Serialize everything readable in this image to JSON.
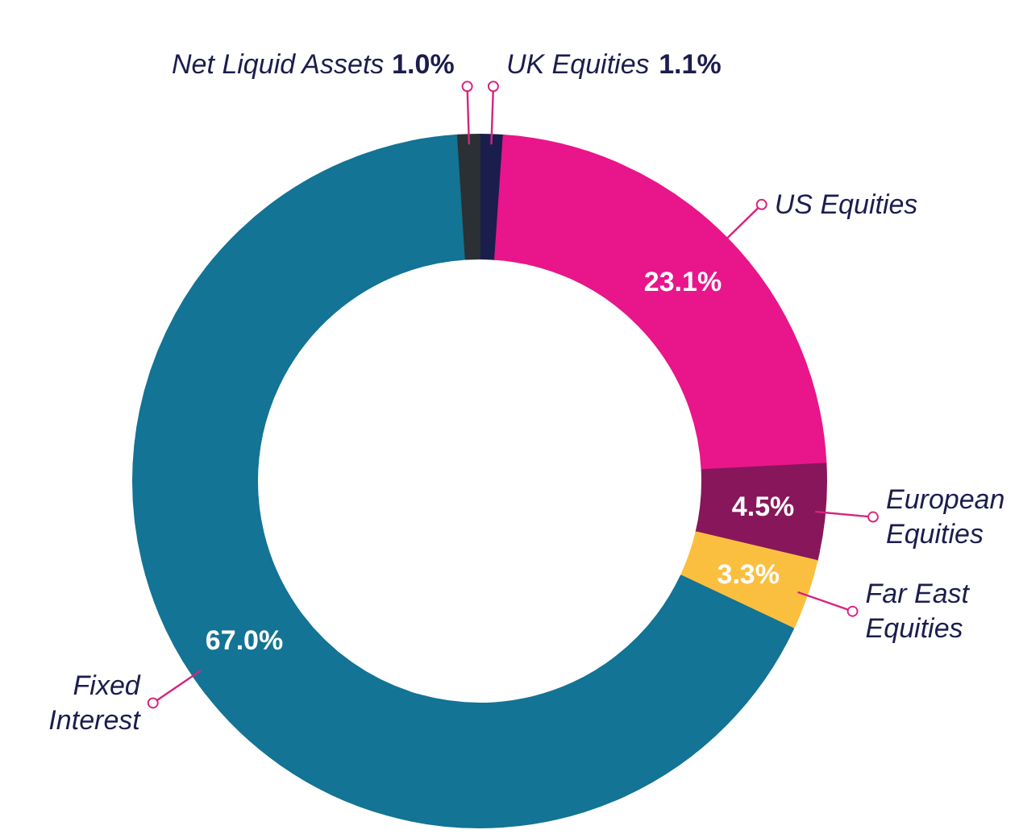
{
  "chart_data": {
    "type": "donut",
    "categories": [
      "UK Equities",
      "US Equities",
      "European Equities",
      "Far East Equities",
      "Fixed Interest",
      "Net Liquid Assets"
    ],
    "values": [
      1.1,
      23.1,
      4.5,
      3.3,
      67.0,
      1.0
    ],
    "colors": [
      "#1b1d4d",
      "#e8168a",
      "#87175a",
      "#fbbf3f",
      "#137495",
      "#2b3035"
    ],
    "value_labels": [
      "1.1%",
      "23.1%",
      "4.5%",
      "3.3%",
      "67.0%",
      "1.0%"
    ]
  }
}
